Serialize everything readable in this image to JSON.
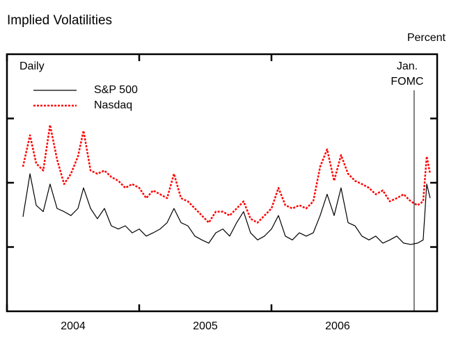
{
  "chart_data": {
    "type": "line",
    "title": "Implied Volatilities",
    "y_unit_label": "Percent",
    "frequency_label": "Daily",
    "xlim": [
      2004,
      2007.253
    ],
    "xticks": [
      {
        "value": 2004,
        "label": "2004"
      },
      {
        "value": 2005,
        "label": "2005"
      },
      {
        "value": 2006,
        "label": "2006"
      }
    ],
    "ylim": [
      0,
      40
    ],
    "yticks": [
      10,
      20,
      30
    ],
    "event_line": {
      "x": 2007.079,
      "label": [
        "Jan.",
        "FOMC"
      ]
    },
    "x": [
      2004.121,
      2004.174,
      2004.221,
      2004.274,
      2004.326,
      2004.379,
      2004.432,
      2004.484,
      2004.537,
      2004.579,
      2004.632,
      2004.684,
      2004.737,
      2004.789,
      2004.842,
      2004.895,
      2004.947,
      2005.0,
      2005.053,
      2005.105,
      2005.158,
      2005.211,
      2005.263,
      2005.316,
      2005.368,
      2005.421,
      2005.474,
      2005.526,
      2005.579,
      2005.632,
      2005.684,
      2005.737,
      2005.789,
      2005.842,
      2005.895,
      2005.947,
      2006.0,
      2006.053,
      2006.105,
      2006.158,
      2006.211,
      2006.263,
      2006.316,
      2006.368,
      2006.421,
      2006.474,
      2006.526,
      2006.579,
      2006.632,
      2006.684,
      2006.737,
      2006.789,
      2006.842,
      2006.895,
      2006.947,
      2007.0,
      2007.053,
      2007.105,
      2007.147,
      2007.174,
      2007.2
    ],
    "series": [
      {
        "name": "S&P 500",
        "color": "#000000",
        "dash": false,
        "values": [
          14.7,
          21.4,
          16.5,
          15.5,
          19.8,
          16.0,
          15.5,
          14.9,
          16.0,
          19.2,
          16.0,
          14.4,
          16.0,
          13.3,
          12.8,
          13.3,
          12.2,
          12.8,
          11.7,
          12.2,
          12.8,
          13.8,
          16.0,
          13.8,
          13.3,
          11.7,
          11.1,
          10.6,
          12.2,
          12.8,
          11.7,
          13.8,
          15.5,
          12.2,
          11.1,
          11.7,
          12.8,
          14.9,
          11.7,
          11.1,
          12.2,
          11.7,
          12.2,
          14.9,
          18.2,
          14.9,
          19.2,
          13.8,
          13.3,
          11.7,
          11.1,
          11.7,
          10.6,
          11.1,
          11.7,
          10.6,
          10.4,
          10.6,
          11.1,
          19.8,
          17.6
        ]
      },
      {
        "name": "Nasdaq",
        "color": "#ff0000",
        "dash": true,
        "values": [
          22.5,
          27.4,
          23.0,
          21.9,
          29.0,
          23.6,
          19.8,
          21.4,
          24.1,
          28.1,
          21.9,
          21.4,
          21.9,
          20.9,
          20.3,
          19.2,
          19.8,
          19.2,
          17.6,
          18.8,
          18.2,
          17.6,
          21.4,
          17.6,
          17.1,
          16.0,
          14.9,
          13.8,
          15.5,
          15.5,
          14.9,
          16.0,
          17.1,
          14.4,
          13.8,
          14.9,
          16.0,
          19.2,
          16.5,
          16.0,
          16.5,
          16.0,
          17.1,
          22.5,
          25.2,
          20.3,
          24.3,
          21.4,
          20.3,
          19.8,
          19.2,
          18.2,
          18.8,
          17.1,
          17.6,
          18.2,
          17.1,
          16.5,
          17.1,
          24.1,
          21.4
        ]
      }
    ]
  }
}
